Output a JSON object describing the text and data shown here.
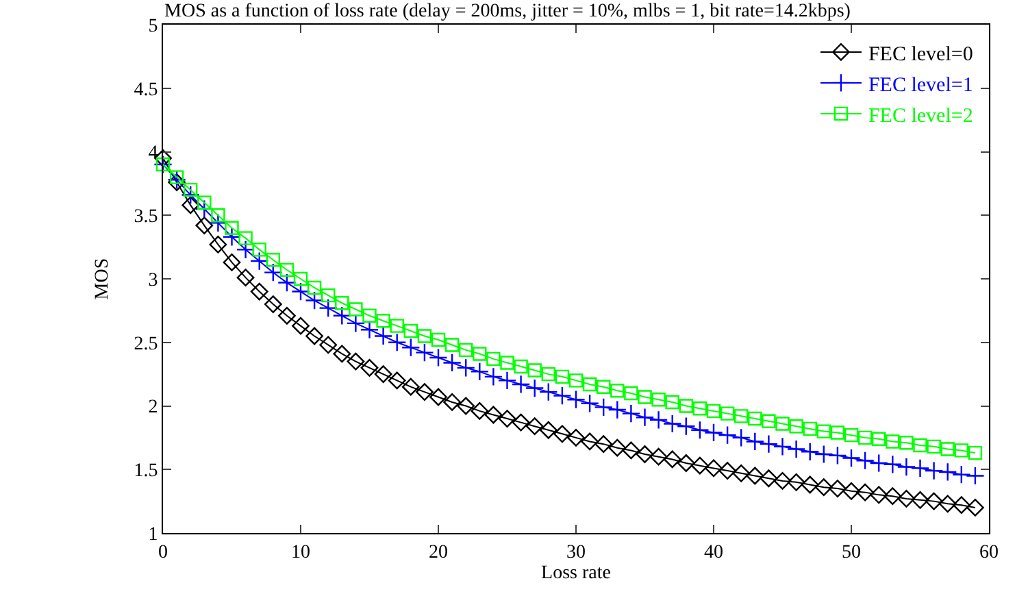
{
  "chart_data": {
    "type": "line",
    "title": "MOS as a function of loss rate (delay = 200ms, jitter = 10%, mlbs = 1, bit rate=14.2kbps)",
    "xlabel": "Loss rate",
    "ylabel": "MOS",
    "x": [
      0,
      1,
      2,
      3,
      4,
      5,
      6,
      7,
      8,
      9,
      10,
      11,
      12,
      13,
      14,
      15,
      16,
      17,
      18,
      19,
      20,
      21,
      22,
      23,
      24,
      25,
      26,
      27,
      28,
      29,
      30,
      31,
      32,
      33,
      34,
      35,
      36,
      37,
      38,
      39,
      40,
      41,
      42,
      43,
      44,
      45,
      46,
      47,
      48,
      49,
      50,
      51,
      52,
      53,
      54,
      55,
      56,
      57,
      58,
      59
    ],
    "series": [
      {
        "name": "FEC level=0",
        "color": "#000000",
        "marker": "diamond",
        "values": [
          3.95,
          3.76,
          3.58,
          3.42,
          3.27,
          3.13,
          3.01,
          2.9,
          2.8,
          2.71,
          2.63,
          2.55,
          2.48,
          2.41,
          2.35,
          2.3,
          2.25,
          2.2,
          2.15,
          2.11,
          2.07,
          2.03,
          2.0,
          1.96,
          1.93,
          1.9,
          1.87,
          1.84,
          1.81,
          1.78,
          1.75,
          1.72,
          1.7,
          1.67,
          1.65,
          1.62,
          1.6,
          1.58,
          1.55,
          1.53,
          1.51,
          1.49,
          1.47,
          1.45,
          1.43,
          1.41,
          1.4,
          1.38,
          1.36,
          1.35,
          1.33,
          1.32,
          1.3,
          1.29,
          1.27,
          1.26,
          1.25,
          1.23,
          1.22,
          1.2
        ]
      },
      {
        "name": "FEC level=1",
        "color": "#0000ff",
        "marker": "cross",
        "values": [
          3.9,
          3.78,
          3.66,
          3.55,
          3.44,
          3.33,
          3.23,
          3.14,
          3.05,
          2.97,
          2.9,
          2.83,
          2.77,
          2.71,
          2.65,
          2.6,
          2.55,
          2.5,
          2.46,
          2.42,
          2.38,
          2.34,
          2.3,
          2.27,
          2.23,
          2.2,
          2.17,
          2.14,
          2.11,
          2.08,
          2.05,
          2.02,
          1.99,
          1.97,
          1.94,
          1.91,
          1.89,
          1.86,
          1.84,
          1.81,
          1.79,
          1.77,
          1.75,
          1.72,
          1.7,
          1.68,
          1.66,
          1.64,
          1.62,
          1.61,
          1.59,
          1.57,
          1.55,
          1.54,
          1.52,
          1.51,
          1.49,
          1.48,
          1.46,
          1.45
        ]
      },
      {
        "name": "FEC level=2",
        "color": "#00ff00",
        "marker": "square",
        "values": [
          3.9,
          3.8,
          3.7,
          3.6,
          3.5,
          3.4,
          3.32,
          3.23,
          3.15,
          3.07,
          3.0,
          2.93,
          2.87,
          2.81,
          2.76,
          2.71,
          2.67,
          2.63,
          2.59,
          2.55,
          2.52,
          2.48,
          2.44,
          2.41,
          2.37,
          2.34,
          2.31,
          2.28,
          2.25,
          2.23,
          2.2,
          2.17,
          2.15,
          2.12,
          2.1,
          2.07,
          2.05,
          2.03,
          2.0,
          1.98,
          1.96,
          1.94,
          1.92,
          1.9,
          1.88,
          1.86,
          1.84,
          1.82,
          1.8,
          1.79,
          1.77,
          1.75,
          1.74,
          1.72,
          1.71,
          1.69,
          1.68,
          1.66,
          1.65,
          1.63
        ]
      }
    ],
    "xlim": [
      0,
      60
    ],
    "xticks": [
      0,
      10,
      20,
      30,
      40,
      50,
      60
    ],
    "ylim": [
      1,
      5
    ],
    "yticks": [
      1,
      1.5,
      2,
      2.5,
      3,
      3.5,
      4,
      4.5,
      5
    ],
    "legend": "top right",
    "line_style": "solid"
  }
}
